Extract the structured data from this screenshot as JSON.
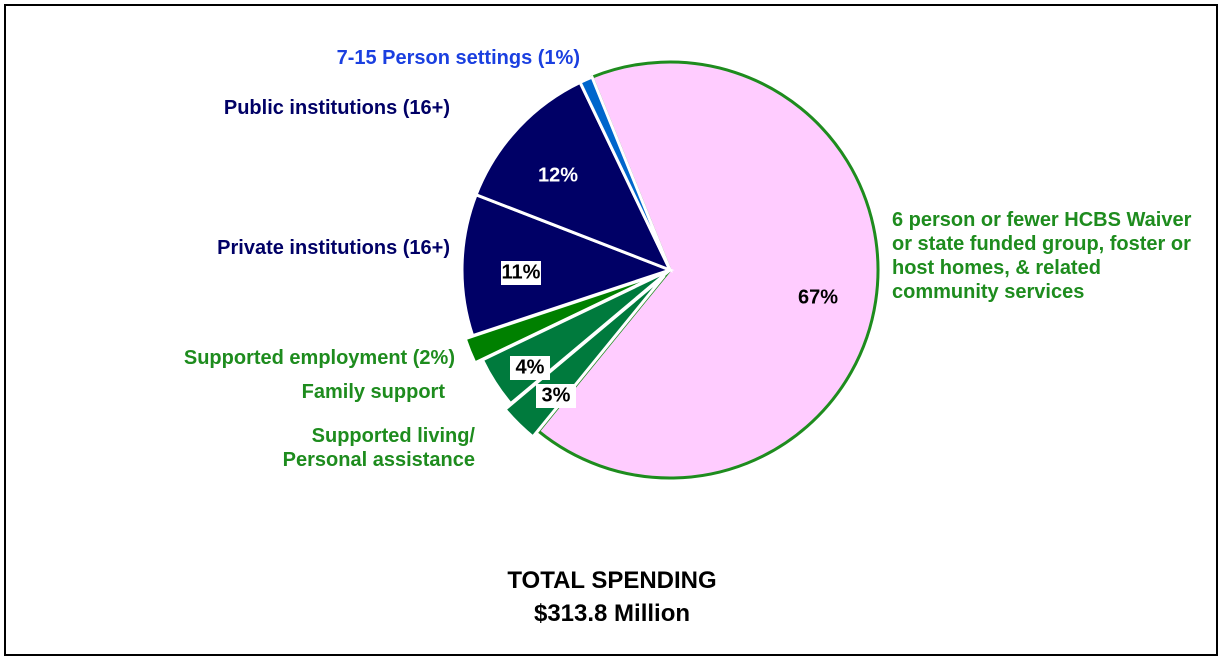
{
  "chart_data": {
    "type": "pie",
    "categories": [
      "6 person or fewer HCBS Waiver or state funded group, foster or host homes, & related community services",
      "Supported living/ Personal assistance",
      "Family support",
      "Supported employment (2%)",
      "Private institutions (16+)",
      "Public institutions (16+)",
      "7-15 Person settings (1%)"
    ],
    "values": [
      67,
      3,
      4,
      2,
      11,
      12,
      1
    ],
    "value_labels": [
      "67%",
      "3%",
      "4%",
      null,
      "11%",
      "12%",
      null
    ],
    "colors": [
      "#ffccff",
      "#007a3d",
      "#007a3d",
      "#008000",
      "#000066",
      "#000066",
      "#0066cc"
    ],
    "start_angle": -22,
    "title": "TOTAL SPENDING",
    "subtitle": "$313.8 Million"
  }
}
